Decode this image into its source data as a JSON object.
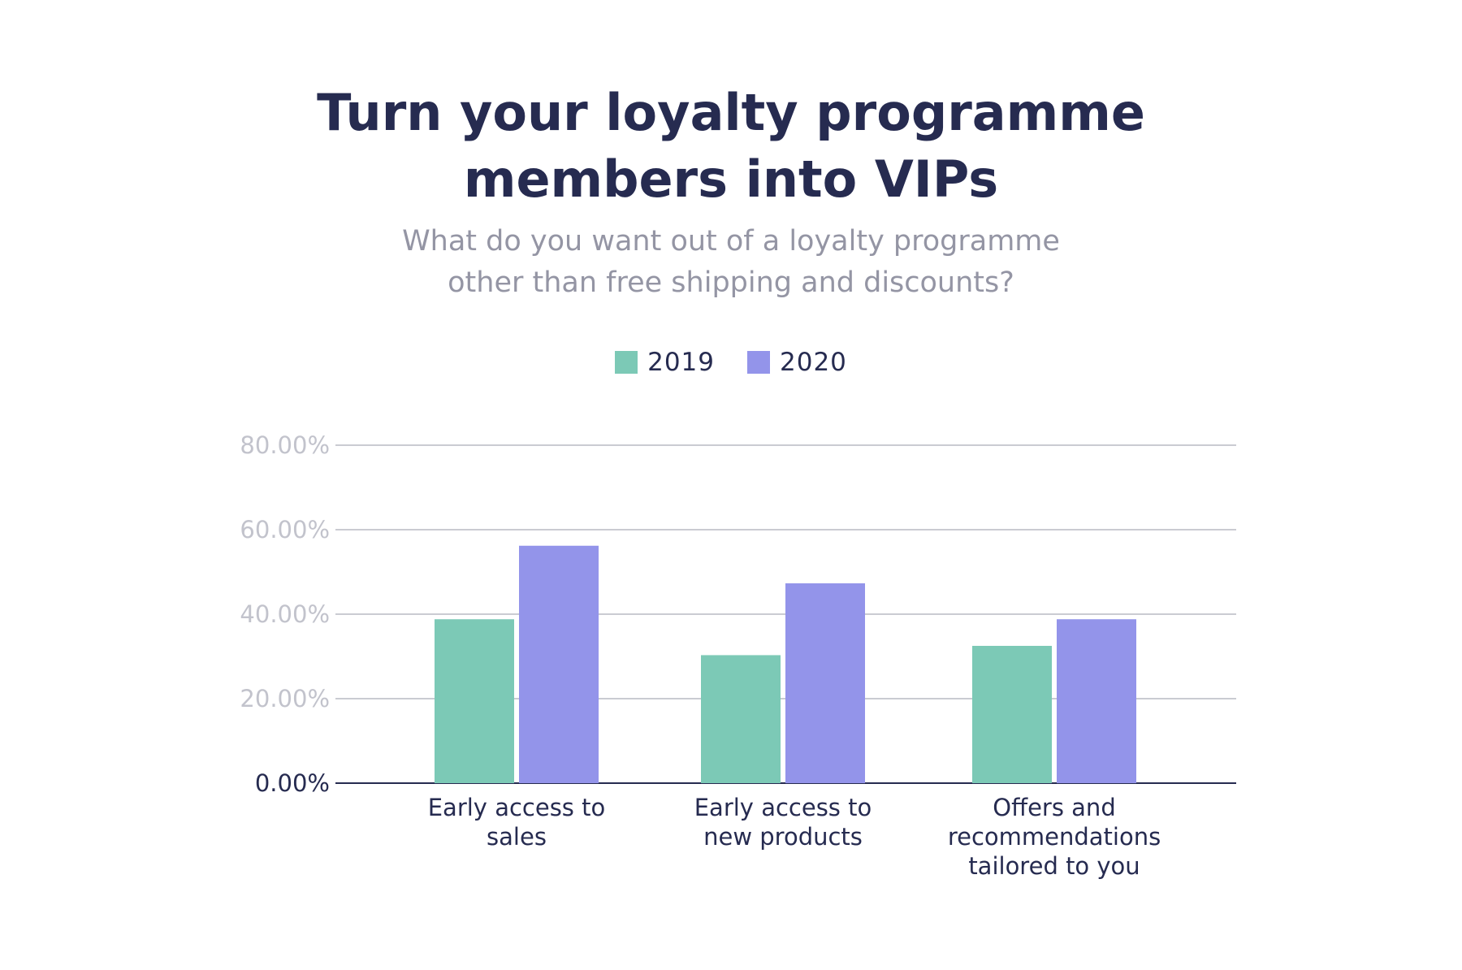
{
  "header": {
    "title_line1": "Turn your loyalty programme",
    "title_line2": "members into VIPs",
    "subtitle_line1": "What do you want out of a loyalty programme",
    "subtitle_line2": "other than free shipping and discounts?"
  },
  "colors": {
    "series_2019": "#7cc9b6",
    "series_2020": "#9394ea",
    "text_dark": "#262b50",
    "grid": "#b9bac4"
  },
  "chart_data": {
    "type": "bar",
    "title": "Turn your loyalty programme members into VIPs",
    "subtitle": "What do you want out of a loyalty programme other than free shipping and discounts?",
    "categories": [
      [
        "Early access to",
        "sales"
      ],
      [
        "Early access to",
        "new products"
      ],
      [
        "Offers and",
        "recommendations",
        "tailored to you"
      ]
    ],
    "series": [
      {
        "name": "2019",
        "values": [
          38.8,
          30.3,
          32.5
        ]
      },
      {
        "name": "2020",
        "values": [
          56.2,
          47.3,
          38.8
        ]
      }
    ],
    "ylim": [
      0,
      80
    ],
    "yticks": [
      0,
      20,
      40,
      60,
      80
    ],
    "ytick_labels": [
      "0.00%",
      "20.00%",
      "40.00%",
      "60.00%",
      "80.00%"
    ],
    "unit": "%",
    "grid": true,
    "legend": "top-center"
  }
}
